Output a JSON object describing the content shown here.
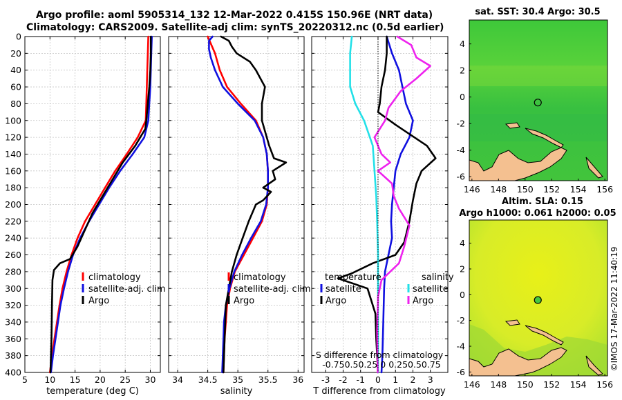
{
  "title": {
    "line1": "Argo profile: aoml 5905314_132 12-Mar-2022 0.415S 150.96E (NRT data)",
    "line2": "Climatology: CARS2009. Satellite-adj clim: synTS_20220312.nc (0.5d earlier)"
  },
  "watermark": "©IMOS 17-Mar-2022 11:40:19",
  "colors": {
    "climatology": "#ff0000",
    "satellite": "#1010e0",
    "argo": "#000000",
    "sal_satellite": "#22e0e8",
    "sal_argo": "#ee22ee"
  },
  "chart_data": [
    {
      "type": "line",
      "name": "temperature-profile",
      "xlabel": "temperature (deg C)",
      "xlim": [
        5,
        32
      ],
      "ylim": [
        400,
        0
      ],
      "xticks": [
        "5",
        "10",
        "15",
        "20",
        "25",
        "30"
      ],
      "yticks": [
        "0",
        "20",
        "40",
        "60",
        "80",
        "100",
        "120",
        "140",
        "160",
        "180",
        "200",
        "220",
        "240",
        "260",
        "280",
        "300",
        "320",
        "340",
        "360",
        "380",
        "400"
      ],
      "legend": [
        "climatology",
        "satellite-adj. clim",
        "Argo"
      ],
      "series": [
        {
          "name": "climatology",
          "color": "#ff0000",
          "points": [
            [
              29.6,
              0
            ],
            [
              29.5,
              20
            ],
            [
              29.4,
              40
            ],
            [
              29.3,
              60
            ],
            [
              29.2,
              80
            ],
            [
              29.1,
              100
            ],
            [
              27.5,
              120
            ],
            [
              25.3,
              140
            ],
            [
              23,
              160
            ],
            [
              21,
              180
            ],
            [
              19,
              200
            ],
            [
              17,
              220
            ],
            [
              15.5,
              240
            ],
            [
              14.3,
              260
            ],
            [
              13.3,
              280
            ],
            [
              12.5,
              300
            ],
            [
              11.9,
              320
            ],
            [
              11.4,
              340
            ],
            [
              10.9,
              360
            ],
            [
              10.4,
              380
            ],
            [
              10,
              400
            ]
          ]
        },
        {
          "name": "satellite-adj. clim",
          "color": "#1010e0",
          "points": [
            [
              30.3,
              0
            ],
            [
              30.2,
              20
            ],
            [
              30.1,
              40
            ],
            [
              30,
              60
            ],
            [
              29.8,
              80
            ],
            [
              29.6,
              100
            ],
            [
              28.8,
              120
            ],
            [
              26.5,
              140
            ],
            [
              24,
              160
            ],
            [
              21.8,
              180
            ],
            [
              19.8,
              200
            ],
            [
              17.8,
              220
            ],
            [
              16,
              240
            ],
            [
              14.6,
              260
            ],
            [
              13.6,
              280
            ],
            [
              12.8,
              300
            ],
            [
              12.1,
              320
            ],
            [
              11.6,
              340
            ],
            [
              11.1,
              360
            ],
            [
              10.6,
              380
            ],
            [
              10.2,
              400
            ]
          ]
        },
        {
          "name": "Argo",
          "color": "#000000",
          "points": [
            [
              30.1,
              0
            ],
            [
              30.1,
              20
            ],
            [
              30,
              40
            ],
            [
              29.8,
              60
            ],
            [
              29.5,
              80
            ],
            [
              29.2,
              100
            ],
            [
              29,
              110
            ],
            [
              27,
              130
            ],
            [
              24.5,
              150
            ],
            [
              22.5,
              170
            ],
            [
              20.5,
              190
            ],
            [
              18.5,
              210
            ],
            [
              17,
              230
            ],
            [
              15.5,
              250
            ],
            [
              14,
              265
            ],
            [
              12,
              270
            ],
            [
              10.8,
              278
            ],
            [
              10.5,
              290
            ],
            [
              10.4,
              320
            ],
            [
              10.3,
              360
            ],
            [
              10.1,
              400
            ]
          ]
        }
      ]
    },
    {
      "type": "line",
      "name": "salinity-profile",
      "xlabel": "salinity",
      "xlim": [
        33.85,
        36.1
      ],
      "ylim": [
        400,
        0
      ],
      "xticks": [
        "34",
        "34.5",
        "35",
        "35.5",
        "36"
      ],
      "legend": [
        "climatology",
        "satellite-adj. clim",
        "Argo"
      ],
      "series": [
        {
          "name": "climatology",
          "color": "#ff0000",
          "points": [
            [
              34.5,
              0
            ],
            [
              34.62,
              20
            ],
            [
              34.7,
              40
            ],
            [
              34.82,
              60
            ],
            [
              35.05,
              80
            ],
            [
              35.3,
              100
            ],
            [
              35.42,
              120
            ],
            [
              35.48,
              140
            ],
            [
              35.5,
              160
            ],
            [
              35.5,
              180
            ],
            [
              35.48,
              200
            ],
            [
              35.4,
              220
            ],
            [
              35.25,
              240
            ],
            [
              35.1,
              260
            ],
            [
              34.95,
              280
            ],
            [
              34.87,
              300
            ],
            [
              34.82,
              320
            ],
            [
              34.8,
              340
            ],
            [
              34.78,
              360
            ],
            [
              34.77,
              380
            ],
            [
              34.76,
              400
            ]
          ]
        },
        {
          "name": "satellite-adj. clim",
          "color": "#1010e0",
          "points": [
            [
              34.58,
              0
            ],
            [
              34.52,
              5
            ],
            [
              34.52,
              15
            ],
            [
              34.55,
              25
            ],
            [
              34.62,
              40
            ],
            [
              34.75,
              60
            ],
            [
              35,
              80
            ],
            [
              35.28,
              100
            ],
            [
              35.42,
              120
            ],
            [
              35.48,
              140
            ],
            [
              35.5,
              160
            ],
            [
              35.5,
              180
            ],
            [
              35.47,
              200
            ],
            [
              35.38,
              220
            ],
            [
              35.22,
              240
            ],
            [
              35.07,
              260
            ],
            [
              34.94,
              280
            ],
            [
              34.86,
              300
            ],
            [
              34.8,
              320
            ],
            [
              34.77,
              340
            ],
            [
              34.76,
              360
            ],
            [
              34.75,
              380
            ],
            [
              34.74,
              400
            ]
          ]
        },
        {
          "name": "Argo",
          "color": "#000000",
          "points": [
            [
              34.72,
              0
            ],
            [
              34.85,
              5
            ],
            [
              34.9,
              12
            ],
            [
              34.98,
              20
            ],
            [
              35.2,
              30
            ],
            [
              35.3,
              40
            ],
            [
              35.45,
              60
            ],
            [
              35.4,
              80
            ],
            [
              35.4,
              100
            ],
            [
              35.52,
              130
            ],
            [
              35.6,
              145
            ],
            [
              35.8,
              150
            ],
            [
              35.58,
              160
            ],
            [
              35.62,
              170
            ],
            [
              35.42,
              180
            ],
            [
              35.55,
              185
            ],
            [
              35.42,
              195
            ],
            [
              35.3,
              200
            ],
            [
              35.18,
              220
            ],
            [
              35.08,
              240
            ],
            [
              34.98,
              260
            ],
            [
              34.9,
              280
            ],
            [
              34.85,
              300
            ],
            [
              34.8,
              320
            ],
            [
              34.78,
              360
            ],
            [
              34.76,
              400
            ]
          ]
        }
      ]
    },
    {
      "type": "line",
      "name": "difference-profile",
      "xlabel": "T difference from climatology",
      "xlabel2": "S difference from climatology",
      "s_ticks": "-0.75 -0.5 -0.25 0 0.25 0.5 0.75",
      "s_ticks_display": "-0.750.50.25 0  0.250.50.75",
      "xlim": [
        -3.8,
        4
      ],
      "ylim": [
        400,
        0
      ],
      "xticks": [
        "-3",
        "-2",
        "-1",
        "0",
        "1",
        "2",
        "3"
      ],
      "legend_titles": [
        "temperature",
        "salinity"
      ],
      "legend_left": [
        "satellite",
        "Argo"
      ],
      "legend_right": [
        "satellite",
        "Argo"
      ],
      "series": [
        {
          "name": "temperature satellite",
          "color": "#1010e0",
          "points": [
            [
              0.5,
              0
            ],
            [
              0.8,
              20
            ],
            [
              1.2,
              40
            ],
            [
              1.4,
              60
            ],
            [
              1.6,
              80
            ],
            [
              2,
              100
            ],
            [
              1.8,
              120
            ],
            [
              1.3,
              140
            ],
            [
              1,
              160
            ],
            [
              0.9,
              180
            ],
            [
              0.8,
              200
            ],
            [
              0.75,
              220
            ],
            [
              0.8,
              240
            ],
            [
              0.6,
              260
            ],
            [
              0.4,
              280
            ],
            [
              0.35,
              300
            ],
            [
              0.3,
              340
            ],
            [
              0.25,
              380
            ],
            [
              0.2,
              400
            ]
          ]
        },
        {
          "name": "temperature Argo",
          "color": "#000000",
          "points": [
            [
              0.5,
              0
            ],
            [
              0.5,
              20
            ],
            [
              0.4,
              40
            ],
            [
              0.2,
              60
            ],
            [
              0.1,
              80
            ],
            [
              0,
              90
            ],
            [
              1,
              105
            ],
            [
              2.8,
              130
            ],
            [
              3.3,
              145
            ],
            [
              2.5,
              160
            ],
            [
              2.2,
              175
            ],
            [
              2,
              195
            ],
            [
              1.8,
              220
            ],
            [
              1.5,
              245
            ],
            [
              1,
              260
            ],
            [
              -0.3,
              270
            ],
            [
              -1.5,
              282
            ],
            [
              -2.3,
              288
            ],
            [
              -0.6,
              300
            ],
            [
              -0.15,
              330
            ],
            [
              -0.1,
              360
            ],
            [
              0,
              400
            ]
          ]
        },
        {
          "name": "salinity satellite",
          "color": "#22e0e8",
          "points": [
            [
              -1.5,
              0
            ],
            [
              -1.6,
              20
            ],
            [
              -1.6,
              40
            ],
            [
              -1.6,
              60
            ],
            [
              -1.3,
              80
            ],
            [
              -0.8,
              100
            ],
            [
              -0.3,
              130
            ],
            [
              -0.2,
              160
            ],
            [
              -0.1,
              190
            ],
            [
              -0.05,
              220
            ],
            [
              0,
              260
            ],
            [
              0,
              300
            ],
            [
              0,
              400
            ]
          ]
        },
        {
          "name": "salinity Argo",
          "color": "#ee22ee",
          "points": [
            [
              1.1,
              0
            ],
            [
              1.9,
              10
            ],
            [
              2.2,
              25
            ],
            [
              3,
              35
            ],
            [
              2.2,
              50
            ],
            [
              1.3,
              65
            ],
            [
              0.6,
              85
            ],
            [
              0.4,
              100
            ],
            [
              -0.2,
              120
            ],
            [
              0.2,
              140
            ],
            [
              0.7,
              150
            ],
            [
              0,
              160
            ],
            [
              0.8,
              175
            ],
            [
              0.9,
              190
            ],
            [
              1.2,
              205
            ],
            [
              1.8,
              225
            ],
            [
              1.5,
              250
            ],
            [
              1.2,
              270
            ],
            [
              0.2,
              290
            ],
            [
              0,
              310
            ],
            [
              -0.05,
              350
            ],
            [
              -0.02,
              400
            ]
          ]
        }
      ]
    },
    {
      "type": "heatmap",
      "name": "sst-map",
      "title": "sat. SST: 30.4 Argo: 30.5",
      "xlim": [
        145.8,
        156.2
      ],
      "ylim": [
        -6.3,
        5.8
      ],
      "xticks": [
        "146",
        "148",
        "150",
        "152",
        "154",
        "156"
      ],
      "yticks": [
        "4",
        "2",
        "0",
        "-2",
        "-4",
        "-6"
      ],
      "argo_position": [
        150.96,
        -0.415
      ]
    },
    {
      "type": "heatmap",
      "name": "sla-map",
      "title_line1": "Altim. SLA: 0.15",
      "title_line2": "Argo h1000: 0.061 h2000: 0.05",
      "xlim": [
        145.8,
        156.2
      ],
      "ylim": [
        -6.3,
        5.8
      ],
      "xticks": [
        "146",
        "148",
        "150",
        "152",
        "154",
        "156"
      ],
      "yticks": [
        "4",
        "2",
        "0",
        "-2",
        "-4",
        "-6"
      ],
      "argo_position": [
        150.96,
        -0.415
      ]
    }
  ]
}
